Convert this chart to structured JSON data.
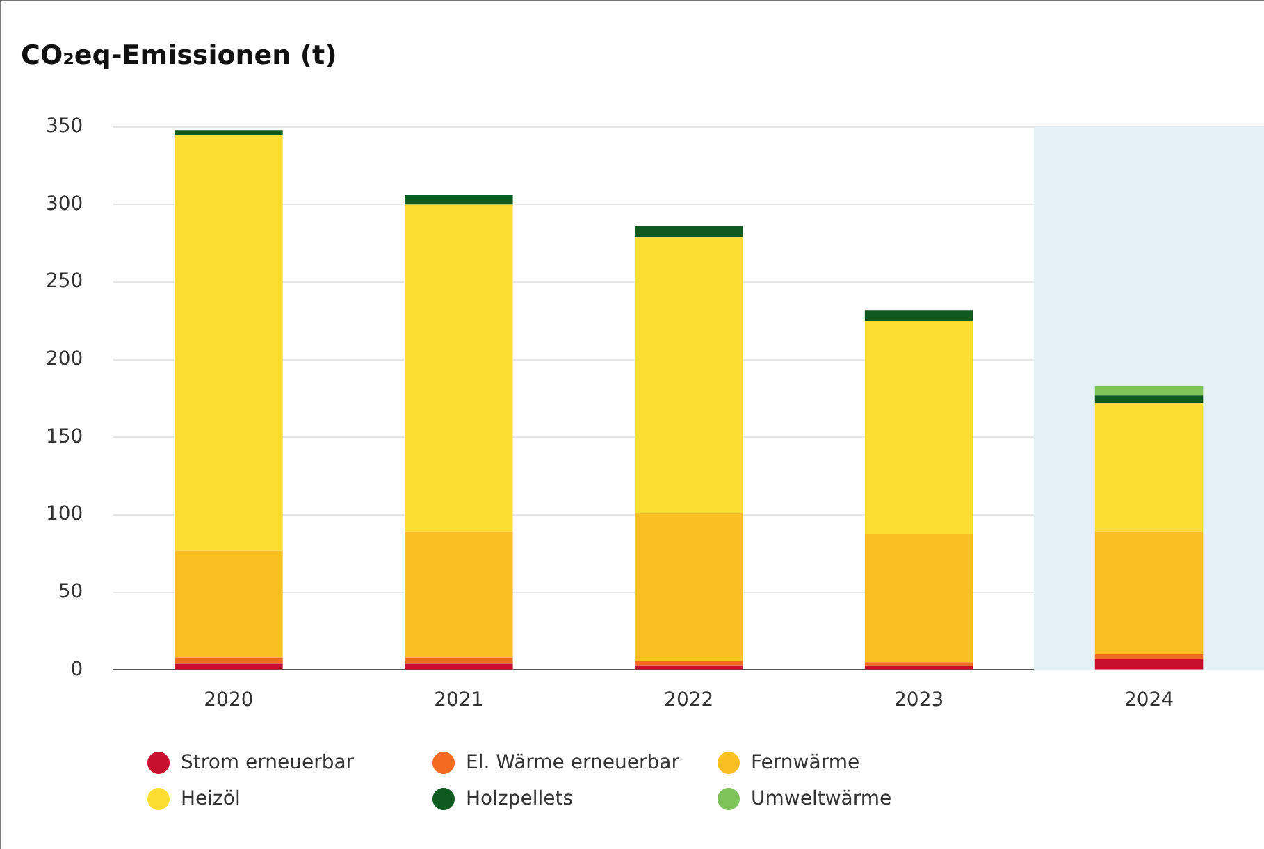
{
  "chart_data": {
    "type": "bar",
    "title": "CO₂eq-Emissionen (t)",
    "stacked": true,
    "categories": [
      "2020",
      "2021",
      "2022",
      "2023",
      "2024"
    ],
    "series": [
      {
        "name": "Strom erneuerbar",
        "color": "#c8102e",
        "values": [
          4,
          4,
          3,
          3,
          7
        ]
      },
      {
        "name": "El. Wärme erneuerbar",
        "color": "#f26b21",
        "values": [
          4,
          4,
          3,
          2,
          3
        ]
      },
      {
        "name": "Fernwärme",
        "color": "#fbbf24",
        "values": [
          69,
          81,
          95,
          83,
          79
        ]
      },
      {
        "name": "Heizöl",
        "color": "#fedd33",
        "values": [
          268,
          211,
          178,
          137,
          83
        ]
      },
      {
        "name": "Holzpellets",
        "color": "#0f5a1e",
        "values": [
          3,
          6,
          7,
          7,
          5
        ]
      },
      {
        "name": "Umweltwärme",
        "color": "#7ec45a",
        "values": [
          0,
          0,
          0,
          0,
          6
        ]
      }
    ],
    "ylim": [
      0,
      350
    ],
    "yticks": [
      0,
      50,
      100,
      150,
      200,
      250,
      300,
      350
    ],
    "grid": "y",
    "legend": "bottom",
    "marker": "circle",
    "bands": [
      {
        "axis": "x",
        "from": "2024",
        "to": "2024",
        "color": "#e3f1f6"
      }
    ]
  }
}
